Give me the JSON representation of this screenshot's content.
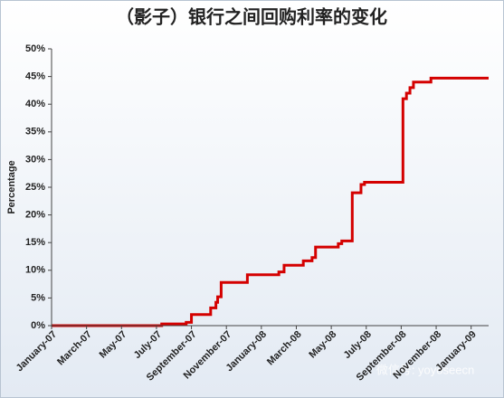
{
  "chart_data": {
    "type": "line",
    "title": "（影子）银行之间回购利率的变化",
    "y_label": "Percentage",
    "watermark": "微信号: yoyoseecn",
    "step": true,
    "xlim": [
      0,
      25
    ],
    "xticks": [
      {
        "value": 0,
        "label": "January-07"
      },
      {
        "value": 2,
        "label": "March-07"
      },
      {
        "value": 4,
        "label": "May-07"
      },
      {
        "value": 6,
        "label": "July-07"
      },
      {
        "value": 8,
        "label": "September-07"
      },
      {
        "value": 10,
        "label": "November-07"
      },
      {
        "value": 12,
        "label": "January-08"
      },
      {
        "value": 14,
        "label": "March-08"
      },
      {
        "value": 16,
        "label": "May-08"
      },
      {
        "value": 18,
        "label": "July-08"
      },
      {
        "value": 20,
        "label": "September-08"
      },
      {
        "value": 22,
        "label": "November-08"
      },
      {
        "value": 24,
        "label": "January-09"
      }
    ],
    "ylim": [
      0,
      50
    ],
    "yticks": [
      {
        "value": 0,
        "label": "0%"
      },
      {
        "value": 5,
        "label": "5%"
      },
      {
        "value": 10,
        "label": "10%"
      },
      {
        "value": 15,
        "label": "15%"
      },
      {
        "value": 20,
        "label": "20%"
      },
      {
        "value": 25,
        "label": "25%"
      },
      {
        "value": 30,
        "label": "30%"
      },
      {
        "value": 35,
        "label": "35%"
      },
      {
        "value": 40,
        "label": "40%"
      },
      {
        "value": 45,
        "label": "45%"
      },
      {
        "value": 50,
        "label": "50%"
      }
    ],
    "series": [
      {
        "color": "#d40000",
        "x": [
          0,
          6.3,
          7.7,
          8.0,
          9.1,
          9.4,
          9.5,
          9.7,
          11.2,
          13.0,
          13.3,
          14.4,
          14.9,
          15.1,
          16.4,
          16.6,
          17.2,
          17.7,
          17.9,
          20.1,
          20.3,
          20.5,
          20.7,
          21.7,
          25
        ],
        "values": [
          0,
          0.3,
          0.6,
          2.0,
          3.2,
          4.2,
          5.2,
          7.8,
          9.2,
          9.7,
          10.9,
          11.7,
          12.3,
          14.2,
          14.8,
          15.3,
          24,
          25.5,
          25.9,
          41,
          42,
          43,
          44,
          44.7,
          44.7
        ]
      }
    ]
  }
}
